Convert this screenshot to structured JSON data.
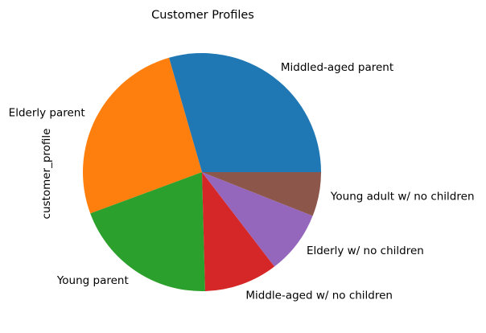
{
  "chart_data": {
    "type": "pie",
    "title": "Customer Profiles",
    "ylabel": "customer_profile",
    "start_angle_deg": 0,
    "direction": "counterclockwise",
    "slices": [
      {
        "label": "Middled-aged parent",
        "value": 0.295,
        "color": "#1f77b4"
      },
      {
        "label": "Elderly parent",
        "value": 0.262,
        "color": "#ff7f0e"
      },
      {
        "label": "Young parent",
        "value": 0.198,
        "color": "#2ca02c"
      },
      {
        "label": "Middle-aged w/ no children",
        "value": 0.1,
        "color": "#d62728"
      },
      {
        "label": "Elderly w/ no children",
        "value": 0.086,
        "color": "#9467bd"
      },
      {
        "label": "Young adult w/ no children",
        "value": 0.06,
        "color": "#8c564b"
      }
    ]
  }
}
